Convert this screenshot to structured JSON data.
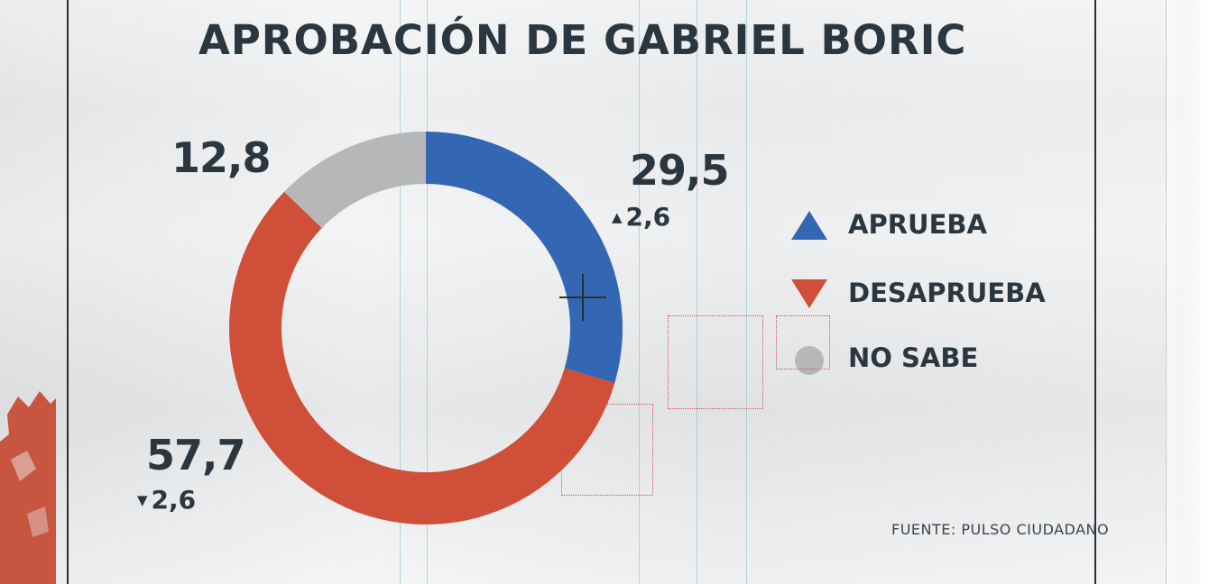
{
  "chart_data": {
    "type": "pie",
    "title": "APROBACIÓN DE GABRIEL BORIC",
    "categories": [
      "APRUEBA",
      "DESAPRUEBA",
      "NO SABE"
    ],
    "values": [
      29.5,
      57.7,
      12.8
    ],
    "value_labels": [
      "29,5",
      "57,7",
      "12,8"
    ],
    "changes": [
      {
        "category": "APRUEBA",
        "direction": "up",
        "label": "2,6"
      },
      {
        "category": "DESAPRUEBA",
        "direction": "down",
        "label": "2,6"
      }
    ],
    "donut": true,
    "legend_position": "right",
    "source": "FUENTE: PULSO CIUDADANO"
  },
  "colors": {
    "aprueba": "#3367b3",
    "desaprueba": "#cf4f38",
    "no_sabe": "#b5b7b9",
    "text": "#2b3740"
  },
  "glyphs": {
    "up_arrow": "▲",
    "down_arrow": "▼"
  }
}
